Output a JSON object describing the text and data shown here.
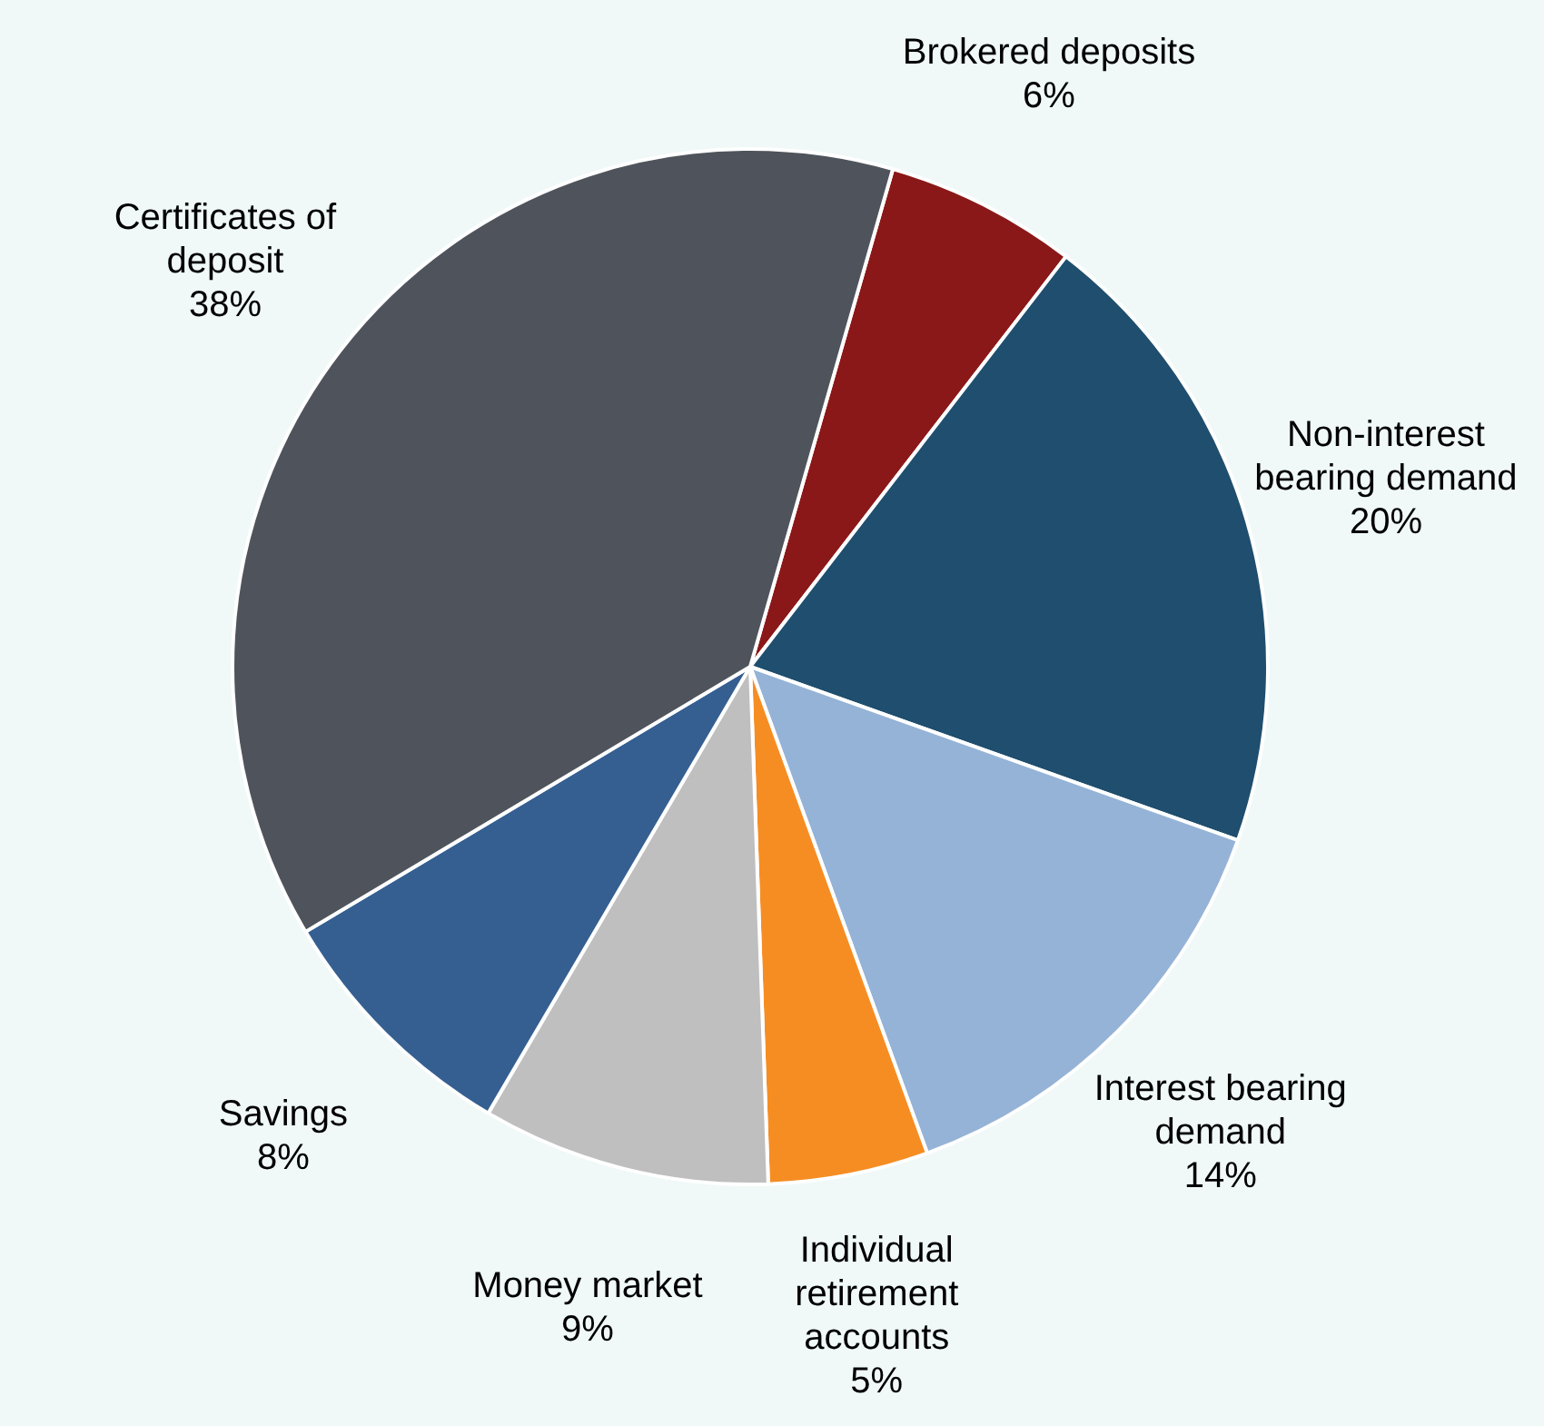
{
  "chart_data": {
    "type": "pie",
    "categories": [
      "Brokered deposits",
      "Non-interest bearing demand",
      "Interest bearing demand",
      "Individual retirement accounts",
      "Money market",
      "Savings",
      "Certificates of deposit"
    ],
    "values": [
      6,
      20,
      14,
      5,
      9,
      8,
      38
    ],
    "value_labels": [
      "6%",
      "20%",
      "14%",
      "5%",
      "9%",
      "8%",
      "38%"
    ],
    "colors": [
      "#8b1818",
      "#1f4e6e",
      "#95b3d7",
      "#f68d23",
      "#bfbfbf",
      "#355f91",
      "#4f545c"
    ],
    "legend": false
  }
}
